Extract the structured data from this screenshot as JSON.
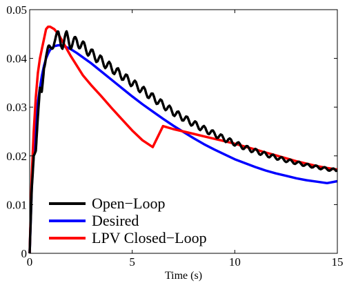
{
  "chart_data": {
    "type": "line",
    "title": "",
    "xlabel": "Time (s)",
    "ylabel": "",
    "xlim": [
      0,
      15
    ],
    "ylim": [
      0,
      0.05
    ],
    "x_ticks": [
      0,
      5,
      10,
      15
    ],
    "x_tick_labels": [
      "0",
      "5",
      "10",
      "15"
    ],
    "y_ticks": [
      0,
      0.01,
      0.02,
      0.03,
      0.04,
      0.05
    ],
    "y_tick_labels": [
      "0",
      "0.01",
      "0.02",
      "0.03",
      "0.04",
      "0.05"
    ],
    "grid": false,
    "legend_position": "bottom-left",
    "series": [
      {
        "name": "Open−Loop",
        "color": "#000000",
        "x": [
          0,
          0.1,
          0.2,
          0.3,
          0.4,
          0.5,
          0.6,
          0.7,
          0.8,
          0.9,
          1.0,
          1.2,
          1.4,
          1.6,
          1.8,
          2.0,
          2.3,
          2.6,
          3.0,
          3.5,
          4.0,
          4.5,
          5.0,
          5.5,
          6.0,
          6.5,
          7.0,
          7.5,
          8.0,
          8.5,
          9.0,
          9.5,
          10.0,
          10.5,
          11.0,
          11.5,
          12.0,
          12.5,
          13.0,
          13.5,
          14.0,
          14.5,
          15.0
        ],
        "y": [
          0,
          0.013,
          0.02,
          0.021,
          0.028,
          0.034,
          0.033,
          0.039,
          0.041,
          0.0415,
          0.0415,
          0.044,
          0.0445,
          0.043,
          0.0445,
          0.043,
          0.0435,
          0.0425,
          0.041,
          0.0395,
          0.038,
          0.0365,
          0.035,
          0.0335,
          0.032,
          0.0305,
          0.029,
          0.0278,
          0.0266,
          0.0255,
          0.0245,
          0.0235,
          0.0226,
          0.0217,
          0.021,
          0.0203,
          0.0197,
          0.0191,
          0.0186,
          0.0181,
          0.0177,
          0.0173,
          0.017
        ]
      },
      {
        "name": "Desired",
        "color": "#0000ff",
        "x": [
          0,
          0.1,
          0.2,
          0.3,
          0.4,
          0.5,
          0.6,
          0.7,
          0.8,
          0.9,
          1.0,
          1.2,
          1.4,
          1.6,
          1.8,
          2.0,
          2.3,
          2.6,
          3.0,
          3.5,
          4.0,
          4.5,
          5.0,
          5.5,
          6.0,
          6.5,
          7.0,
          7.5,
          8.0,
          8.5,
          9.0,
          9.5,
          10.0,
          10.5,
          11.0,
          11.5,
          12.0,
          12.5,
          13.0,
          13.5,
          14.0,
          14.5,
          15.0
        ],
        "y": [
          0,
          0.0135,
          0.021,
          0.027,
          0.031,
          0.034,
          0.0365,
          0.0385,
          0.04,
          0.041,
          0.0418,
          0.0425,
          0.0427,
          0.0426,
          0.0423,
          0.0419,
          0.0411,
          0.0402,
          0.039,
          0.0373,
          0.0356,
          0.0339,
          0.0322,
          0.0306,
          0.0291,
          0.0276,
          0.0262,
          0.0249,
          0.0236,
          0.0224,
          0.0213,
          0.0203,
          0.0193,
          0.0185,
          0.0177,
          0.017,
          0.0164,
          0.0159,
          0.0154,
          0.015,
          0.0147,
          0.0144,
          0.0148
        ]
      },
      {
        "name": "LPV Closed−Loop",
        "color": "#ff0000",
        "x": [
          0,
          0.1,
          0.2,
          0.3,
          0.4,
          0.5,
          0.6,
          0.7,
          0.8,
          0.9,
          1.0,
          1.2,
          1.4,
          1.6,
          1.8,
          2.0,
          2.3,
          2.6,
          3.0,
          3.5,
          4.0,
          4.5,
          5.0,
          5.5,
          6.0,
          6.5,
          7.0,
          7.5,
          8.0,
          8.5,
          9.0,
          9.5,
          10.0,
          10.5,
          11.0,
          11.5,
          12.0,
          12.5,
          13.0,
          13.5,
          14.0,
          14.5,
          15.0
        ],
        "y": [
          0,
          0.016,
          0.025,
          0.032,
          0.037,
          0.04,
          0.042,
          0.044,
          0.046,
          0.0465,
          0.0465,
          0.046,
          0.045,
          0.0435,
          0.042,
          0.0405,
          0.0385,
          0.0365,
          0.0345,
          0.0322,
          0.0298,
          0.0275,
          0.0252,
          0.0232,
          0.0218,
          0.0261,
          0.0255,
          0.025,
          0.0245,
          0.024,
          0.0235,
          0.023,
          0.0225,
          0.0219,
          0.0213,
          0.0207,
          0.0201,
          0.0195,
          0.0189,
          0.0184,
          0.0179,
          0.0175,
          0.0172
        ]
      }
    ]
  }
}
